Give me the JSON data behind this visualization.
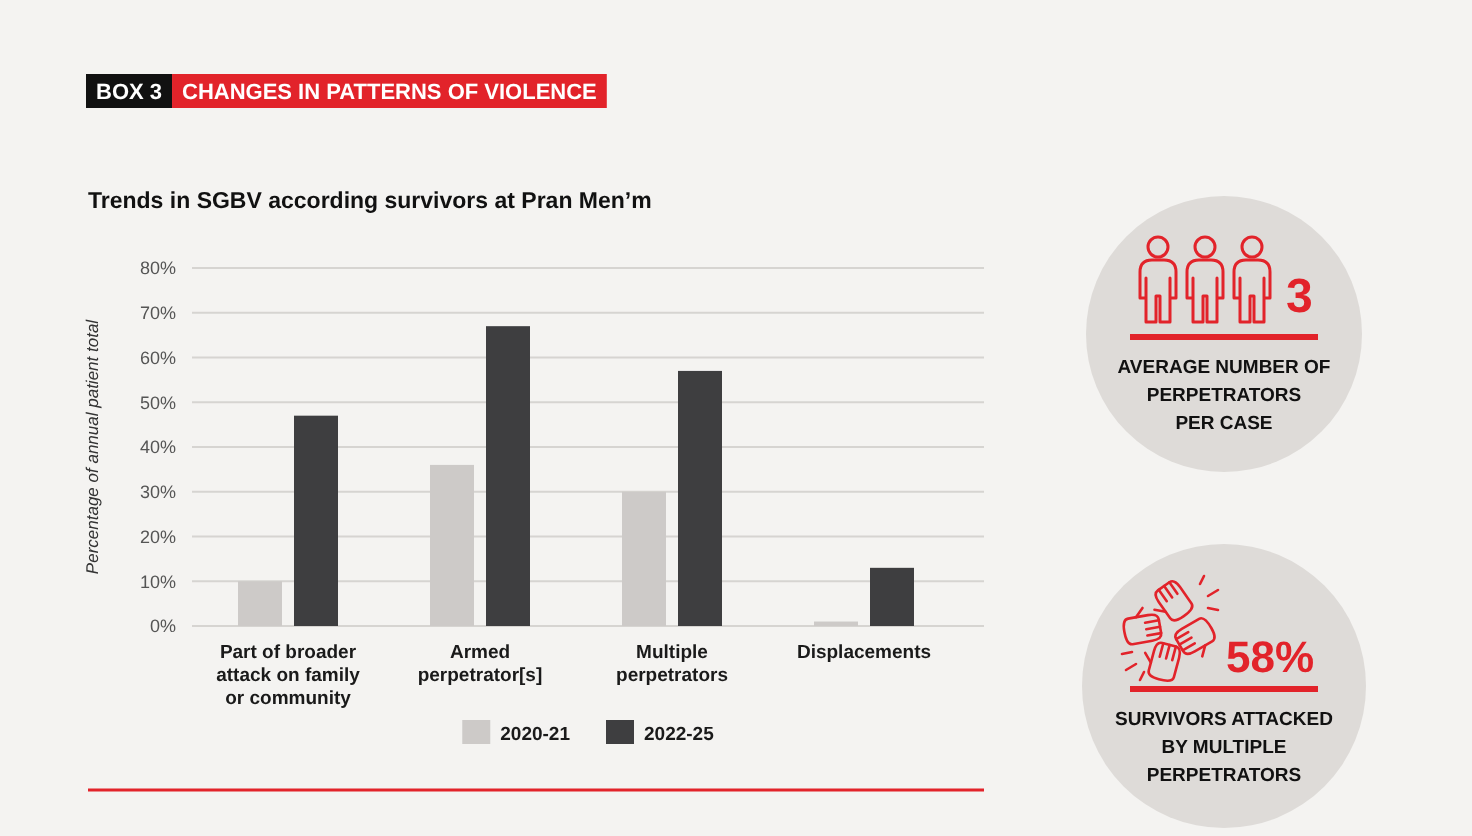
{
  "chart_data": [
    {
      "type": "bar",
      "title": "Trends in SGBV according survivors at Pran Men’m",
      "annotations": [
        "BOX 3",
        "CHANGES IN PATTERNS OF VIOLENCE"
      ],
      "ylabel": "Percentage of annual patient total",
      "categories": [
        "Part of broader attack on family or community",
        "Armed perpetrator[s]",
        "Multiple perpetrators",
        "Displacements"
      ],
      "series": [
        {
          "name": "2020-21",
          "color": "#cdcac8",
          "values": [
            10,
            36,
            30,
            1
          ]
        },
        {
          "name": "2022-25",
          "color": "#3e3e40",
          "values": [
            47,
            67,
            57,
            13
          ]
        }
      ],
      "ylim": [
        0,
        80
      ],
      "yticks": [
        {
          "value": 0,
          "label": "0%"
        },
        {
          "value": 10,
          "label": "10%"
        },
        {
          "value": 20,
          "label": "20%"
        },
        {
          "value": 30,
          "label": "30%"
        },
        {
          "value": 40,
          "label": "40%"
        },
        {
          "value": 50,
          "label": "50%"
        },
        {
          "value": 60,
          "label": "60%"
        },
        {
          "value": 70,
          "label": "70%"
        },
        {
          "value": 80,
          "label": "80%"
        }
      ],
      "grid": "y",
      "legend": "bottom"
    },
    {
      "type": "other",
      "annotations": [
        "3",
        "AVERAGE NUMBER OF\nPERPETRATORS\nPER CASE"
      ]
    },
    {
      "type": "other",
      "annotations": [
        "58%",
        "SURVIVORS ATTACKED\nBY MULTIPLE\nPERPETRATORS"
      ]
    }
  ]
}
